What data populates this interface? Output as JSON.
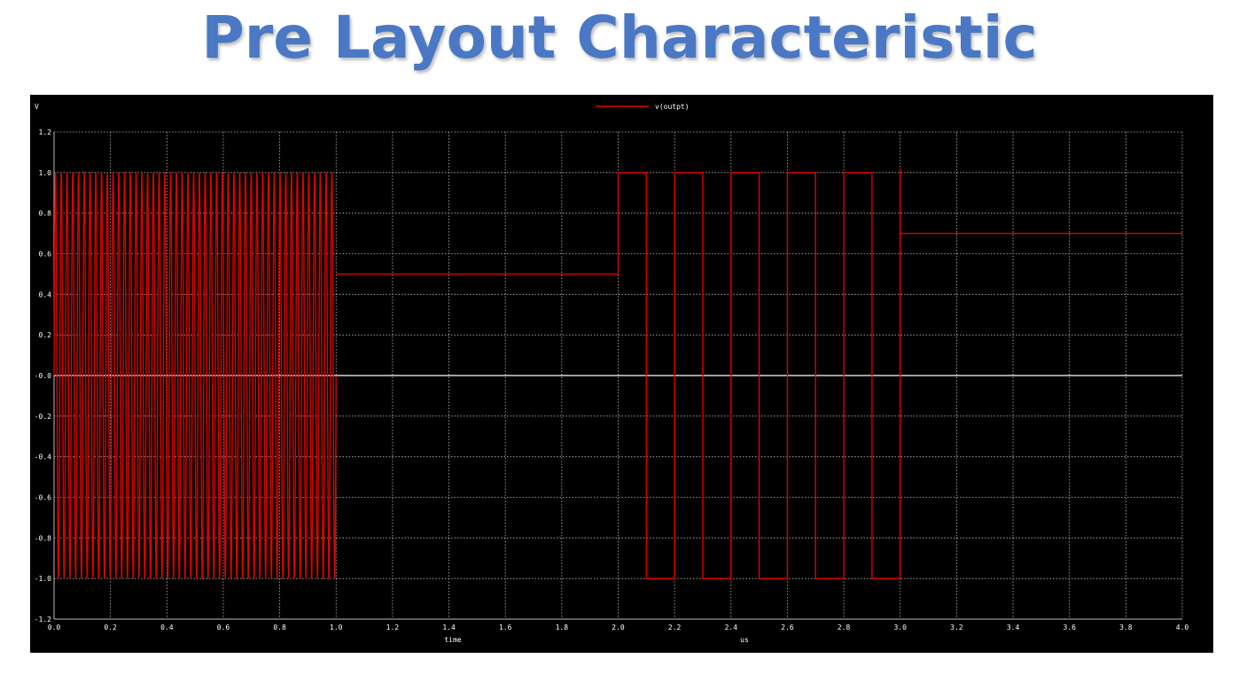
{
  "page": {
    "title": "Pre Layout Characteristic"
  },
  "chart_data": {
    "type": "line",
    "y_unit_label": "V",
    "xlabel": "time",
    "x_unit_label": "us",
    "xlim": [
      0.0,
      4.0
    ],
    "ylim": [
      -1.2,
      1.2
    ],
    "grid": true,
    "legend_placement": "top-center",
    "x_ticks": [
      "0.0",
      "0.2",
      "0.4",
      "0.6",
      "0.8",
      "1.0",
      "1.2",
      "1.4",
      "1.6",
      "1.8",
      "2.0",
      "2.2",
      "2.4",
      "2.6",
      "2.8",
      "3.0",
      "3.2",
      "3.4",
      "3.6",
      "3.8",
      "4.0"
    ],
    "y_ticks": [
      "1.2",
      "1.0",
      "0.8",
      "0.6",
      "0.4",
      "0.2",
      "-0.0",
      "-0.2",
      "-0.4",
      "-0.6",
      "-0.8",
      "-1.0",
      "-1.2"
    ],
    "colors": {
      "background": "#000000",
      "grid": "#bbbbbb",
      "zero_line": "#ffffff",
      "series": "#e00000",
      "text": "#ffffff"
    },
    "series": [
      {
        "name": "v(outpt)",
        "segments": [
          {
            "kind": "sine",
            "x_start": 0.0,
            "x_end": 1.0,
            "amplitude": 1.0,
            "frequency_mhz": 49
          },
          {
            "kind": "polyline",
            "points": [
              [
                1.0,
                0.5
              ],
              [
                2.0,
                0.5
              ],
              [
                2.0,
                1.0
              ],
              [
                2.1,
                1.0
              ],
              [
                2.1,
                -1.0
              ],
              [
                2.2,
                -1.0
              ],
              [
                2.2,
                1.0
              ],
              [
                2.3,
                1.0
              ],
              [
                2.3,
                -1.0
              ],
              [
                2.4,
                -1.0
              ],
              [
                2.4,
                1.0
              ],
              [
                2.5,
                1.0
              ],
              [
                2.5,
                -1.0
              ],
              [
                2.6,
                -1.0
              ],
              [
                2.6,
                1.0
              ],
              [
                2.7,
                1.0
              ],
              [
                2.7,
                -1.0
              ],
              [
                2.8,
                -1.0
              ],
              [
                2.8,
                1.0
              ],
              [
                2.9,
                1.0
              ],
              [
                2.9,
                -1.0
              ],
              [
                3.0,
                -1.0
              ],
              [
                3.0,
                1.02
              ],
              [
                3.0,
                0.7
              ],
              [
                4.0,
                0.7
              ]
            ]
          }
        ]
      }
    ]
  }
}
